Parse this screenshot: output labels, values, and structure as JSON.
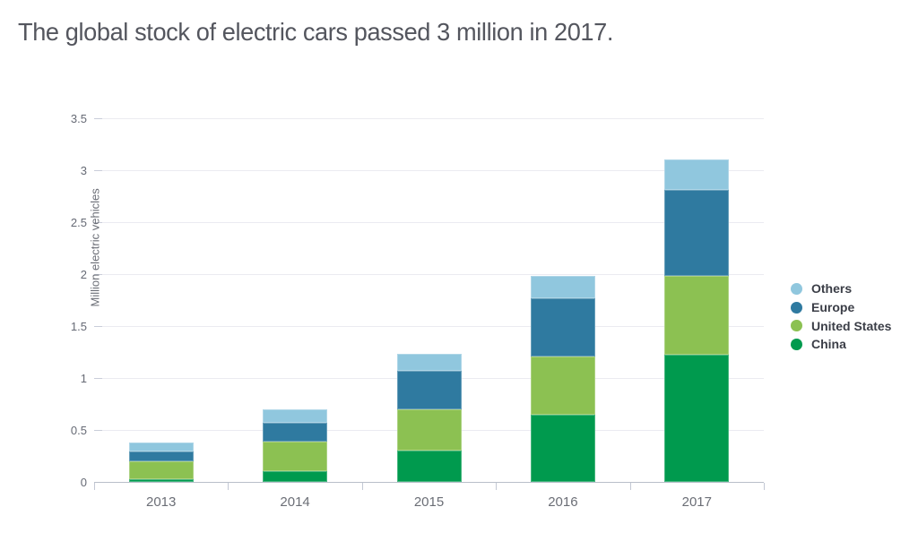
{
  "title": "The global stock of electric cars passed 3 million in 2017.",
  "chart_data": {
    "type": "bar",
    "stacked": true,
    "title": "The global stock of electric cars passed 3 million in 2017.",
    "categories": [
      "2013",
      "2014",
      "2015",
      "2016",
      "2017"
    ],
    "series": [
      {
        "name": "China",
        "color": "#009a4e",
        "values": [
          0.03,
          0.1,
          0.3,
          0.65,
          1.22
        ]
      },
      {
        "name": "United States",
        "color": "#8cc152",
        "values": [
          0.17,
          0.29,
          0.4,
          0.56,
          0.76
        ]
      },
      {
        "name": "Europe",
        "color": "#2f7aa0",
        "values": [
          0.09,
          0.18,
          0.37,
          0.56,
          0.83
        ]
      },
      {
        "name": "Others",
        "color": "#90c7de",
        "values": [
          0.09,
          0.13,
          0.16,
          0.21,
          0.29
        ]
      }
    ],
    "totals": [
      0.38,
      0.7,
      1.23,
      1.98,
      3.1
    ],
    "xlabel": "",
    "ylabel": "Million electric vehicles",
    "ytick_labels": [
      "0",
      "0.5",
      "1",
      "1.5",
      "2",
      "2.5",
      "3",
      "3.5"
    ],
    "ylim": [
      0,
      3.5
    ],
    "grid": true,
    "legend_position": "right",
    "legend_order": [
      "Others",
      "Europe",
      "United States",
      "China"
    ]
  },
  "colors": {
    "china": "#009a4e",
    "united_states": "#8cc152",
    "europe": "#2f7aa0",
    "others": "#90c7de",
    "gridline": "#ebebf1",
    "axis_line": "#b9bfca",
    "title_text": "#54565e",
    "tick_text": "#666a75",
    "legend_text": "#3b3e47"
  }
}
